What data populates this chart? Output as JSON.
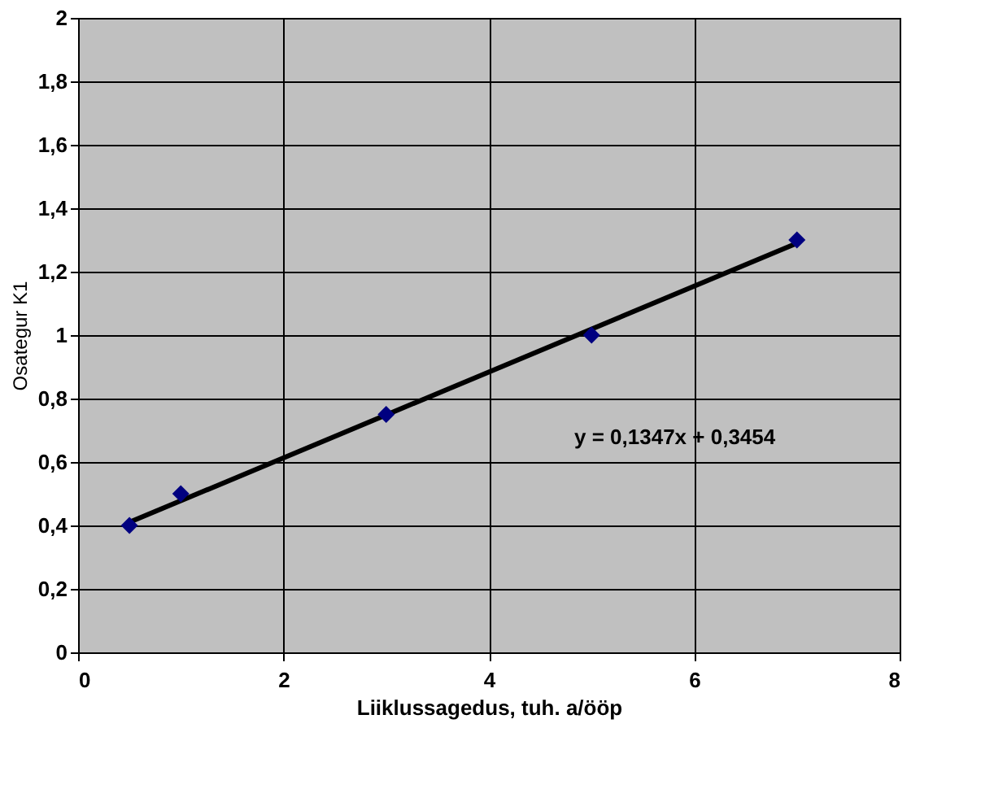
{
  "chart_data": {
    "type": "scatter",
    "xlabel": "Liiklussagedus, tuh. a/ööp",
    "ylabel": "Osategur K1",
    "xlim": [
      0,
      8
    ],
    "xticks": [
      0,
      2,
      4,
      6,
      8
    ],
    "ylim": [
      0,
      2
    ],
    "yticks": [
      0,
      {
        "value": 0.2,
        "label": "0,2"
      },
      {
        "value": 0.4,
        "label": "0,4"
      },
      {
        "value": 0.6,
        "label": "0,6"
      },
      {
        "value": 0.8,
        "label": "0,8"
      },
      1,
      {
        "value": 1.2,
        "label": "1,2"
      },
      {
        "value": 1.4,
        "label": "1,4"
      },
      {
        "value": 1.6,
        "label": "1,6"
      },
      {
        "value": 1.8,
        "label": "1,8"
      },
      2
    ],
    "grid": true,
    "series": [
      {
        "color": "#000080",
        "marker": "diamond",
        "x": [
          0.5,
          1,
          3,
          5,
          7
        ],
        "values": [
          0.4,
          0.5,
          0.75,
          1.0,
          1.3
        ]
      },
      {
        "type": "line",
        "color": "#000000",
        "marker": "none",
        "line_style": "solid",
        "x": [
          0.5,
          7
        ],
        "values": [
          0.41,
          1.29
        ]
      }
    ],
    "annotations": [
      "y = 0,1347x + 0,3454"
    ]
  }
}
